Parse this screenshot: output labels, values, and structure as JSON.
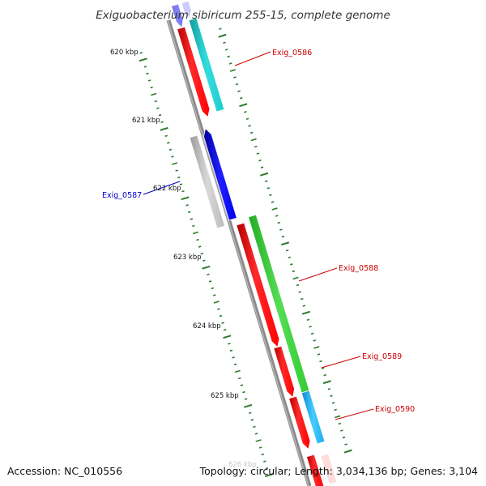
{
  "title": "Exiguobacterium sibiricum 255-15, complete genome",
  "footer": {
    "accession": "Accession: NC_010556",
    "topology": "Topology: circular; Length: 3,034,136 bp; Genes: 3,104"
  },
  "colors": {
    "backbone": "#8a8a8a",
    "tick": "#2d7a2d",
    "red": "#ff0000",
    "cyan": "#22cccc",
    "green": "#33cc33",
    "blue": "#0000ff",
    "gray": "#b8b8b8",
    "sky": "#22aaee",
    "label_red": "#cc0000",
    "label_blue": "#0000cc"
  },
  "kbp_ticks": [
    {
      "kbp": 620,
      "label": "620 kbp"
    },
    {
      "kbp": 621,
      "label": "621 kbp"
    },
    {
      "kbp": 622,
      "label": "622 kbp"
    },
    {
      "kbp": 623,
      "label": "623 kbp"
    },
    {
      "kbp": 624,
      "label": "624 kbp"
    },
    {
      "kbp": 625,
      "label": "625 kbp"
    },
    {
      "kbp": 626,
      "label": "626 kbp"
    }
  ],
  "genes": [
    {
      "label": "Exig_0586",
      "strand": "+",
      "color": "#22cccc"
    },
    {
      "label": "Exig_0587",
      "strand": "-",
      "color": "#0000ff"
    },
    {
      "label": "Exig_0588",
      "strand": "+",
      "color": "#33cc33"
    },
    {
      "label": "Exig_0589",
      "strand": "+",
      "color": "#ff0000"
    },
    {
      "label": "Exig_0590",
      "strand": "+",
      "color": "#22aaee"
    }
  ]
}
